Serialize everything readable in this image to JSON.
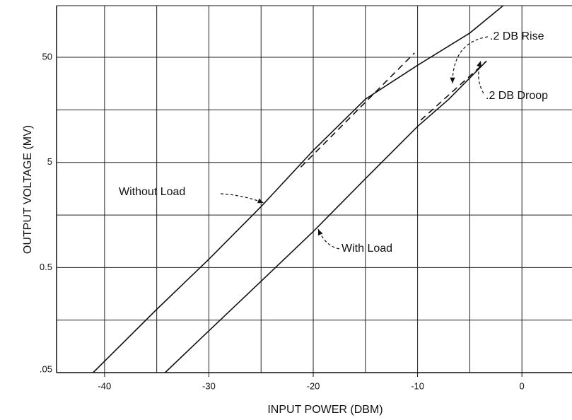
{
  "chart_data": {
    "type": "line",
    "xlabel": "INPUT POWER (DBM)",
    "ylabel": "OUTPUT VOLTAGE (MV)",
    "xlim": [
      -44.6,
      4.8
    ],
    "xticks": [
      -40,
      -30,
      -20,
      -10,
      0
    ],
    "x_minor_grid": [
      -35,
      -25,
      -15,
      -5
    ],
    "ylim": [
      0.05,
      155
    ],
    "yticks": [
      {
        "value": 0.05,
        "label": ".05"
      },
      0.5,
      5,
      50
    ],
    "y_minor_grid": [
      0.158,
      1.58,
      15.8
    ],
    "log_y": true,
    "grid": true,
    "series": [
      {
        "name": "Without Load",
        "color": "#111111",
        "x": [
          -41.1,
          -35,
          -30,
          -25,
          -20,
          -15,
          -10,
          -5,
          -1.8
        ],
        "values": [
          0.05,
          0.2,
          0.6,
          1.9,
          6.5,
          20,
          42,
          85,
          155
        ]
      },
      {
        "name": "With Load",
        "color": "#111111",
        "x": [
          -34.2,
          -30,
          -25,
          -20,
          -15,
          -10,
          -7,
          -3.4
        ],
        "values": [
          0.05,
          0.125,
          0.37,
          1.1,
          3.5,
          11,
          20,
          46
        ]
      }
    ],
    "reference_lines": [
      {
        "color": "#111111",
        "dash": true,
        "x": [
          -21.2,
          -10.3
        ],
        "values": [
          4.5,
          55
        ]
      },
      {
        "color": "#111111",
        "dash": true,
        "x": [
          -9.7,
          -3.4
        ],
        "values": [
          12.6,
          46
        ]
      }
    ],
    "annotations": [
      ".2 DB Rise",
      ".2 DB Droop"
    ]
  }
}
